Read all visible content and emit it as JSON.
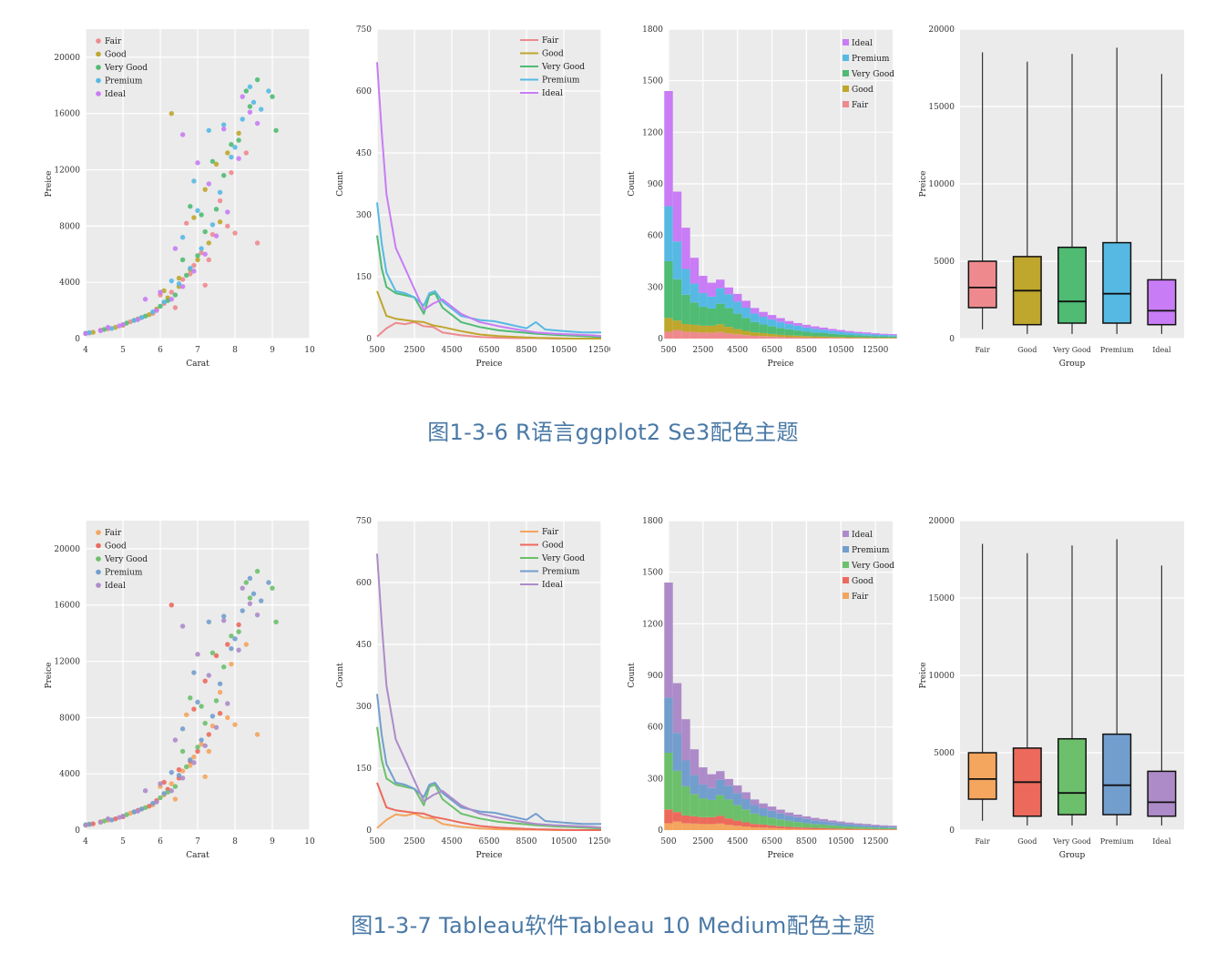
{
  "captions": {
    "row_a": "图1-3-6  R语言ggplot2 Se3配色主题",
    "row_b": "图1-3-7  Tableau软件Tableau 10 Medium配色主题"
  },
  "palettes": {
    "row_a": {
      "Fair": "#ee8a8e",
      "Good": "#bfa62c",
      "Very Good": "#4fbb73",
      "Premium": "#56b9e4",
      "Ideal": "#c87cf5"
    },
    "row_b": {
      "Fair": "#f4a55e",
      "Good": "#ec6a5c",
      "Very Good": "#6cc06b",
      "Premium": "#729ece",
      "Ideal": "#ad8bc9"
    }
  },
  "legend_order": {
    "scatter": [
      "Fair",
      "Good",
      "Very Good",
      "Premium",
      "Ideal"
    ],
    "density": [
      "Fair",
      "Good",
      "Very Good",
      "Premium",
      "Ideal"
    ],
    "histogram": [
      "Ideal",
      "Premium",
      "Very Good",
      "Good",
      "Fair"
    ]
  },
  "chart_data": [
    {
      "type": "scatter",
      "xlabel": "Carat",
      "ylabel": "Preice",
      "xlim": [
        4,
        10
      ],
      "ylim": [
        0,
        22000
      ],
      "xticks": [
        4,
        5,
        6,
        7,
        8,
        9,
        10
      ],
      "yticks": [
        0,
        4000,
        8000,
        12000,
        16000,
        20000
      ],
      "grid": true,
      "legend": "top-left",
      "series": [
        {
          "name": "Fair",
          "points": [
            [
              4.1,
              400
            ],
            [
              4.6,
              700
            ],
            [
              5.2,
              1200
            ],
            [
              5.8,
              1800
            ],
            [
              6.1,
              2500
            ],
            [
              6.3,
              3300
            ],
            [
              6.6,
              4200
            ],
            [
              6.9,
              5200
            ],
            [
              7.1,
              6100
            ],
            [
              7.4,
              7400
            ],
            [
              7.8,
              8000
            ],
            [
              8.0,
              7500
            ],
            [
              8.6,
              6800
            ],
            [
              7.6,
              9800
            ],
            [
              6.8,
              4600
            ],
            [
              6.4,
              2200
            ],
            [
              5.5,
              1500
            ],
            [
              4.4,
              600
            ],
            [
              7.2,
              3800
            ],
            [
              6.0,
              3100
            ],
            [
              7.9,
              11800
            ],
            [
              6.7,
              8200
            ],
            [
              7.3,
              5600
            ],
            [
              8.3,
              13200
            ]
          ]
        },
        {
          "name": "Good",
          "points": [
            [
              4.2,
              450
            ],
            [
              4.8,
              800
            ],
            [
              5.4,
              1400
            ],
            [
              5.9,
              2100
            ],
            [
              6.2,
              2900
            ],
            [
              6.5,
              3700
            ],
            [
              6.8,
              4900
            ],
            [
              7.0,
              5600
            ],
            [
              7.3,
              6800
            ],
            [
              7.6,
              8300
            ],
            [
              6.3,
              16000
            ],
            [
              6.5,
              4300
            ],
            [
              5.7,
              1700
            ],
            [
              7.8,
              13200
            ],
            [
              6.9,
              8600
            ],
            [
              7.2,
              10600
            ],
            [
              6.1,
              3400
            ],
            [
              7.5,
              12400
            ],
            [
              8.1,
              14600
            ],
            [
              5.0,
              950
            ]
          ]
        },
        {
          "name": "Very Good",
          "points": [
            [
              4.0,
              380
            ],
            [
              4.5,
              650
            ],
            [
              5.1,
              1100
            ],
            [
              5.6,
              1600
            ],
            [
              6.0,
              2300
            ],
            [
              6.4,
              3100
            ],
            [
              6.7,
              4500
            ],
            [
              7.0,
              5900
            ],
            [
              7.2,
              7600
            ],
            [
              7.5,
              9200
            ],
            [
              7.7,
              11600
            ],
            [
              8.1,
              14100
            ],
            [
              8.4,
              16500
            ],
            [
              8.6,
              18400
            ],
            [
              9.0,
              17200
            ],
            [
              9.1,
              14800
            ],
            [
              6.2,
              2700
            ],
            [
              6.6,
              5600
            ],
            [
              7.4,
              12600
            ],
            [
              7.9,
              13800
            ],
            [
              6.8,
              9400
            ],
            [
              5.3,
              1300
            ],
            [
              7.1,
              8800
            ],
            [
              8.3,
              17600
            ]
          ]
        },
        {
          "name": "Premium",
          "points": [
            [
              4.1,
              420
            ],
            [
              4.7,
              720
            ],
            [
              5.3,
              1300
            ],
            [
              5.8,
              1900
            ],
            [
              6.1,
              2600
            ],
            [
              6.5,
              3900
            ],
            [
              6.8,
              5000
            ],
            [
              7.1,
              6400
            ],
            [
              7.4,
              8100
            ],
            [
              7.6,
              10400
            ],
            [
              7.9,
              12900
            ],
            [
              8.2,
              15600
            ],
            [
              8.4,
              17900
            ],
            [
              8.7,
              16300
            ],
            [
              8.9,
              17600
            ],
            [
              7.3,
              14800
            ],
            [
              6.9,
              11200
            ],
            [
              6.3,
              4100
            ],
            [
              7.7,
              15200
            ],
            [
              8.0,
              13600
            ],
            [
              5.5,
              1500
            ],
            [
              7.0,
              9100
            ],
            [
              6.6,
              7200
            ],
            [
              8.5,
              16800
            ]
          ]
        },
        {
          "name": "Ideal",
          "points": [
            [
              4.0,
              350
            ],
            [
              4.4,
              560
            ],
            [
              4.9,
              900
            ],
            [
              5.4,
              1350
            ],
            [
              5.9,
              2000
            ],
            [
              6.3,
              2800
            ],
            [
              6.6,
              3700
            ],
            [
              6.9,
              4800
            ],
            [
              7.2,
              6000
            ],
            [
              7.5,
              7300
            ],
            [
              7.8,
              9000
            ],
            [
              8.1,
              12800
            ],
            [
              8.4,
              16100
            ],
            [
              8.6,
              15300
            ],
            [
              6.6,
              14500
            ],
            [
              7.0,
              12500
            ],
            [
              5.0,
              1000
            ],
            [
              5.6,
              2800
            ],
            [
              6.0,
              3300
            ],
            [
              7.3,
              11000
            ],
            [
              7.7,
              14900
            ],
            [
              6.4,
              6400
            ],
            [
              4.6,
              800
            ],
            [
              8.2,
              17200
            ]
          ]
        }
      ]
    },
    {
      "type": "line",
      "xlabel": "Preice",
      "ylabel": "Count",
      "xlim": [
        500,
        12500
      ],
      "ylim": [
        0,
        750
      ],
      "xticks": [
        500,
        2500,
        4500,
        6500,
        8500,
        10500,
        12500
      ],
      "yticks": [
        0,
        150,
        300,
        450,
        600,
        750
      ],
      "grid": true,
      "legend": "top-right",
      "series": [
        {
          "name": "Fair",
          "x": [
            500,
            1000,
            1500,
            2000,
            2500,
            3000,
            3500,
            4000,
            5000,
            6000,
            7000,
            8000,
            9000,
            10000,
            11000,
            12000,
            12500
          ],
          "values": [
            5,
            25,
            38,
            35,
            40,
            30,
            28,
            15,
            8,
            4,
            2,
            1,
            1,
            0,
            0,
            0,
            0
          ]
        },
        {
          "name": "Good",
          "x": [
            500,
            1000,
            1500,
            2000,
            2500,
            3000,
            3500,
            4000,
            5000,
            6000,
            7000,
            8000,
            9000,
            10000,
            11000,
            12000,
            12500
          ],
          "values": [
            115,
            55,
            48,
            45,
            42,
            40,
            32,
            28,
            18,
            10,
            6,
            4,
            2,
            1,
            0,
            0,
            0
          ]
        },
        {
          "name": "Very Good",
          "x": [
            500,
            750,
            1000,
            1500,
            2000,
            2500,
            3000,
            3300,
            3600,
            4000,
            5000,
            6000,
            7000,
            8000,
            9000,
            10000,
            11000,
            12000,
            12500
          ],
          "values": [
            250,
            170,
            125,
            110,
            105,
            100,
            60,
            105,
            110,
            75,
            40,
            28,
            20,
            16,
            12,
            9,
            7,
            5,
            4
          ]
        },
        {
          "name": "Premium",
          "x": [
            500,
            750,
            1000,
            1500,
            2000,
            2500,
            3000,
            3300,
            3600,
            4000,
            5000,
            6000,
            6800,
            7500,
            8500,
            9000,
            9500,
            10500,
            11500,
            12500
          ],
          "values": [
            330,
            230,
            160,
            115,
            110,
            100,
            80,
            110,
            115,
            90,
            55,
            45,
            42,
            35,
            25,
            40,
            22,
            18,
            15,
            15
          ]
        },
        {
          "name": "Ideal",
          "x": [
            500,
            750,
            1000,
            1500,
            2000,
            2500,
            3000,
            3500,
            4000,
            5000,
            6000,
            7000,
            8000,
            9000,
            10000,
            11000,
            12000,
            12500
          ],
          "values": [
            670,
            500,
            350,
            220,
            170,
            120,
            70,
            85,
            95,
            60,
            40,
            30,
            22,
            15,
            12,
            10,
            8,
            6
          ]
        }
      ]
    },
    {
      "type": "bar",
      "stacked": true,
      "xlabel": "Preice",
      "ylabel": "Count",
      "xlim": [
        500,
        13500
      ],
      "ylim": [
        0,
        1800
      ],
      "xticks": [
        500,
        2500,
        4500,
        6500,
        8500,
        10500,
        12500
      ],
      "yticks": [
        0,
        300,
        600,
        900,
        1200,
        1500,
        1800
      ],
      "bin_width": 500,
      "bin_starts": [
        250,
        750,
        1250,
        1750,
        2250,
        2750,
        3250,
        3750,
        4250,
        4750,
        5250,
        5750,
        6250,
        6750,
        7250,
        7750,
        8250,
        8750,
        9250,
        9750,
        10250,
        10750,
        11250,
        11750,
        12250,
        12750,
        13250
      ],
      "grid": true,
      "legend": "top-right",
      "series": [
        {
          "name": "Fair",
          "values": [
            40,
            50,
            40,
            38,
            35,
            35,
            38,
            30,
            25,
            20,
            16,
            14,
            12,
            10,
            8,
            7,
            6,
            5,
            5,
            4,
            4,
            3,
            3,
            3,
            2,
            2,
            2
          ]
        },
        {
          "name": "Good",
          "values": [
            80,
            55,
            45,
            42,
            40,
            40,
            45,
            38,
            30,
            25,
            20,
            18,
            15,
            12,
            11,
            10,
            9,
            8,
            7,
            6,
            5,
            5,
            4,
            4,
            3,
            3,
            3
          ]
        },
        {
          "name": "Very Good",
          "values": [
            330,
            240,
            170,
            130,
            110,
            100,
            120,
            110,
            90,
            75,
            60,
            50,
            45,
            40,
            35,
            30,
            25,
            22,
            20,
            18,
            15,
            13,
            12,
            10,
            9,
            8,
            7
          ]
        },
        {
          "name": "Premium",
          "values": [
            320,
            220,
            150,
            110,
            80,
            70,
            90,
            80,
            70,
            60,
            50,
            45,
            40,
            35,
            30,
            28,
            25,
            22,
            20,
            18,
            16,
            14,
            12,
            11,
            10,
            9,
            8
          ]
        },
        {
          "name": "Ideal",
          "values": [
            670,
            290,
            240,
            150,
            100,
            80,
            50,
            40,
            45,
            40,
            32,
            28,
            25,
            22,
            18,
            15,
            15,
            14,
            12,
            10,
            10,
            9,
            8,
            8,
            7,
            6,
            6
          ]
        }
      ]
    },
    {
      "type": "box",
      "xlabel": "Group",
      "ylabel": "Preice",
      "ylim": [
        0,
        20000
      ],
      "yticks": [
        0,
        5000,
        10000,
        15000,
        20000
      ],
      "categories": [
        "Fair",
        "Good",
        "Very Good",
        "Premium",
        "Ideal"
      ],
      "grid": true,
      "boxes": [
        {
          "name": "Fair",
          "min": 600,
          "q1": 2000,
          "median": 3300,
          "q3": 5000,
          "max": 18500
        },
        {
          "name": "Good",
          "min": 300,
          "q1": 900,
          "median": 3100,
          "q3": 5300,
          "max": 17900
        },
        {
          "name": "Very Good",
          "min": 300,
          "q1": 1000,
          "median": 2400,
          "q3": 5900,
          "max": 18400
        },
        {
          "name": "Premium",
          "min": 300,
          "q1": 1000,
          "median": 2900,
          "q3": 6200,
          "max": 18800
        },
        {
          "name": "Ideal",
          "min": 300,
          "q1": 900,
          "median": 1800,
          "q3": 3800,
          "max": 17100
        }
      ]
    }
  ]
}
